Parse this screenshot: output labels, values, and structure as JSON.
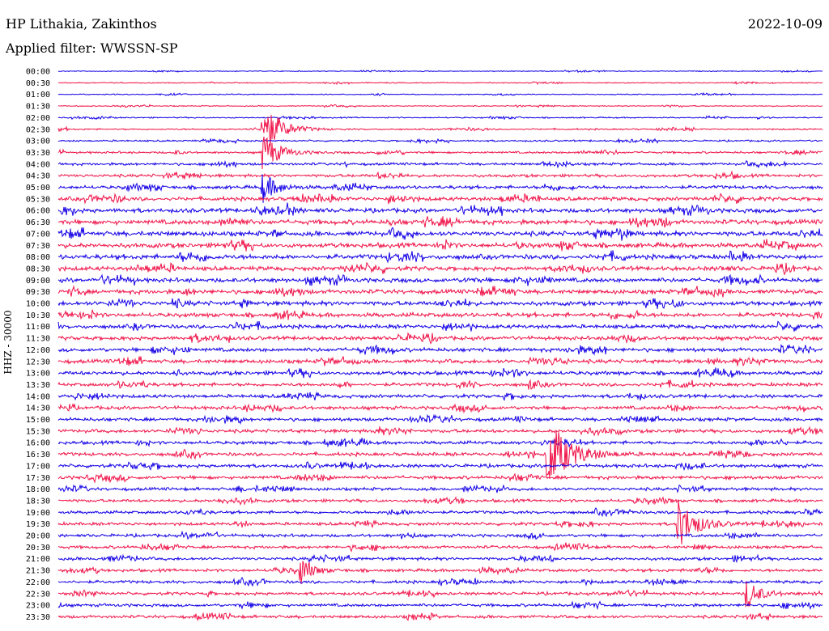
{
  "header": {
    "station": "HP Lithakia, Zakinthos",
    "date": "2022-10-09",
    "filter_label": "Applied filter: WWSSN-SP"
  },
  "colors": {
    "series_a": "#1400e6",
    "series_b": "#f0154a"
  },
  "chart_data": {
    "type": "line",
    "title": "HP Lithakia, Zakinthos",
    "subtitle": "Applied filter: WWSSN-SP",
    "ylabel": "HHZ - 30000",
    "xlabel": "",
    "grid": false,
    "legend": "none",
    "row_labels": [
      "00:00",
      "00:30",
      "01:00",
      "01:30",
      "02:00",
      "02:30",
      "03:00",
      "03:30",
      "04:00",
      "04:30",
      "05:00",
      "05:30",
      "06:00",
      "06:30",
      "07:00",
      "07:30",
      "08:00",
      "08:30",
      "09:00",
      "09:30",
      "10:00",
      "10:30",
      "11:00",
      "11:30",
      "12:00",
      "12:30",
      "13:00",
      "13:30",
      "14:00",
      "14:30",
      "15:00",
      "15:30",
      "16:00",
      "16:30",
      "17:00",
      "17:30",
      "18:00",
      "18:30",
      "19:00",
      "19:30",
      "20:00",
      "20:30",
      "21:00",
      "21:30",
      "22:00",
      "22:30",
      "23:00",
      "23:30"
    ],
    "row_noise": [
      0.1,
      0.12,
      0.12,
      0.12,
      0.15,
      0.18,
      0.2,
      0.25,
      0.3,
      0.35,
      0.4,
      0.45,
      0.5,
      0.55,
      0.55,
      0.55,
      0.55,
      0.5,
      0.5,
      0.5,
      0.5,
      0.5,
      0.45,
      0.45,
      0.45,
      0.45,
      0.45,
      0.4,
      0.4,
      0.4,
      0.4,
      0.4,
      0.4,
      0.4,
      0.4,
      0.4,
      0.35,
      0.35,
      0.35,
      0.35,
      0.35,
      0.35,
      0.35,
      0.35,
      0.35,
      0.35,
      0.35,
      0.35
    ],
    "events": [
      {
        "row": 3,
        "minute": 18.0,
        "amp": 0.4
      },
      {
        "row": 4,
        "minute": 27.5,
        "amp": 0.4
      },
      {
        "row": 5,
        "minute": 8.0,
        "amp": 10.0
      },
      {
        "row": 7,
        "minute": 8.0,
        "amp": 8.0
      },
      {
        "row": 10,
        "minute": 8.0,
        "amp": 6.0
      },
      {
        "row": 11,
        "minute": 13.0,
        "amp": 1.5
      },
      {
        "row": 11,
        "minute": 13.5,
        "amp": 1.2
      },
      {
        "row": 12,
        "minute": 9.0,
        "amp": 1.2
      },
      {
        "row": 13,
        "minute": 13.0,
        "amp": 1.0
      },
      {
        "row": 14,
        "minute": 22.0,
        "amp": 1.0
      },
      {
        "row": 15,
        "minute": 18.0,
        "amp": 1.0
      },
      {
        "row": 17,
        "minute": 26.0,
        "amp": 0.9
      },
      {
        "row": 18,
        "minute": 16.0,
        "amp": 0.9
      },
      {
        "row": 19,
        "minute": 5.0,
        "amp": 1.2
      },
      {
        "row": 20,
        "minute": 4.5,
        "amp": 1.8
      },
      {
        "row": 22,
        "minute": 3.0,
        "amp": 1.0
      },
      {
        "row": 25,
        "minute": 25.5,
        "amp": 1.0
      },
      {
        "row": 27,
        "minute": 18.5,
        "amp": 2.0
      },
      {
        "row": 30,
        "minute": 18.0,
        "amp": 1.0
      },
      {
        "row": 32,
        "minute": 10.5,
        "amp": 1.2
      },
      {
        "row": 33,
        "minute": 19.2,
        "amp": 14.0
      },
      {
        "row": 34,
        "minute": 9.8,
        "amp": 1.2
      },
      {
        "row": 36,
        "minute": 7.0,
        "amp": 1.2
      },
      {
        "row": 39,
        "minute": 24.3,
        "amp": 10.0
      },
      {
        "row": 41,
        "minute": 19.5,
        "amp": 1.0
      },
      {
        "row": 43,
        "minute": 9.5,
        "amp": 5.0
      },
      {
        "row": 44,
        "minute": 20.5,
        "amp": 1.2
      },
      {
        "row": 45,
        "minute": 27.0,
        "amp": 6.0
      }
    ]
  }
}
